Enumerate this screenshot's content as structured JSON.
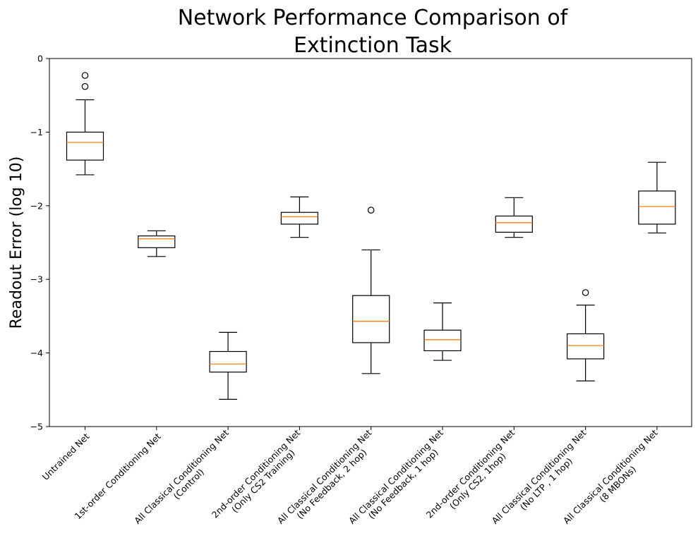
{
  "chart_data": {
    "type": "box",
    "title": [
      "Network Performance Comparison of",
      "Extinction Task"
    ],
    "xlabel": "",
    "ylabel": "Readout Error (log 10)",
    "ylim": [
      -5,
      0
    ],
    "yticks": [
      0,
      -1,
      -2,
      -3,
      -4,
      -5
    ],
    "ytick_labels": [
      "0",
      "−1",
      "−2",
      "−3",
      "−4",
      "−5"
    ],
    "grid": false,
    "colors": {
      "box": "#000000",
      "median": "#ff7f0e",
      "axes": "#000000"
    },
    "categories": [
      [
        "Untrained Net"
      ],
      [
        "1st-order Conditioning Net"
      ],
      [
        "All Classical Conditioning Net",
        "(Control)"
      ],
      [
        "2nd-order Conditioning Net",
        "(Only CS2 Training)"
      ],
      [
        "All Classical Conditioning Net",
        "(No Feedback, 2 hop)"
      ],
      [
        "All Classical Conditioning Net",
        "(No Feedback, 1 hop)"
      ],
      [
        "2nd-order Conditioning Net",
        "(Only CS2, 1hop)"
      ],
      [
        "All Classical Conditioning Net",
        "(No LTP , 1 hop)"
      ],
      [
        "All Classical Conditioning Net",
        "(8 MBONs)"
      ]
    ],
    "boxes": [
      {
        "whisker_low": -1.58,
        "q1": -1.38,
        "median": -1.14,
        "q3": -1.0,
        "whisker_high": -0.56,
        "outliers": [
          -0.23,
          -0.38
        ]
      },
      {
        "whisker_low": -2.69,
        "q1": -2.57,
        "median": -2.45,
        "q3": -2.41,
        "whisker_high": -2.34,
        "outliers": []
      },
      {
        "whisker_low": -4.63,
        "q1": -4.26,
        "median": -4.15,
        "q3": -3.98,
        "whisker_high": -3.72,
        "outliers": []
      },
      {
        "whisker_low": -2.43,
        "q1": -2.25,
        "median": -2.15,
        "q3": -2.09,
        "whisker_high": -1.88,
        "outliers": []
      },
      {
        "whisker_low": -4.28,
        "q1": -3.86,
        "median": -3.57,
        "q3": -3.22,
        "whisker_high": -2.6,
        "outliers": [
          -2.06
        ]
      },
      {
        "whisker_low": -4.1,
        "q1": -3.97,
        "median": -3.82,
        "q3": -3.69,
        "whisker_high": -3.32,
        "outliers": []
      },
      {
        "whisker_low": -2.43,
        "q1": -2.36,
        "median": -2.23,
        "q3": -2.14,
        "whisker_high": -1.89,
        "outliers": []
      },
      {
        "whisker_low": -4.38,
        "q1": -4.08,
        "median": -3.9,
        "q3": -3.74,
        "whisker_high": -3.35,
        "outliers": [
          -3.18
        ]
      },
      {
        "whisker_low": -2.37,
        "q1": -2.25,
        "median": -2.01,
        "q3": -1.8,
        "whisker_high": -1.41,
        "outliers": []
      }
    ]
  }
}
